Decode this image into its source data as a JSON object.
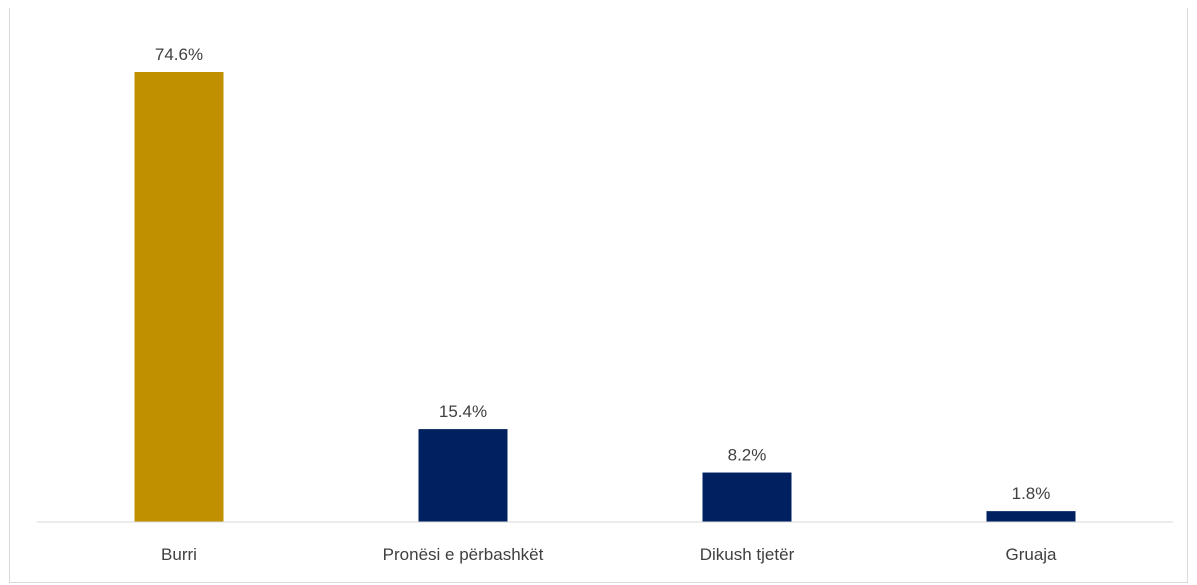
{
  "chart_data": {
    "type": "bar",
    "title": "",
    "xlabel": "",
    "ylabel": "",
    "categories": [
      "Burri",
      "Pronësi e përbashkët",
      "Dikush tjetër",
      "Gruaja"
    ],
    "values": [
      74.6,
      15.4,
      8.2,
      1.8
    ],
    "value_labels": [
      "74.6%",
      "15.4%",
      "8.2%",
      "1.8%"
    ],
    "bar_colors": [
      "#C09000",
      "#002060",
      "#002060",
      "#002060"
    ],
    "ylim": [
      0,
      74.6
    ],
    "grid": false,
    "legend": "none"
  }
}
